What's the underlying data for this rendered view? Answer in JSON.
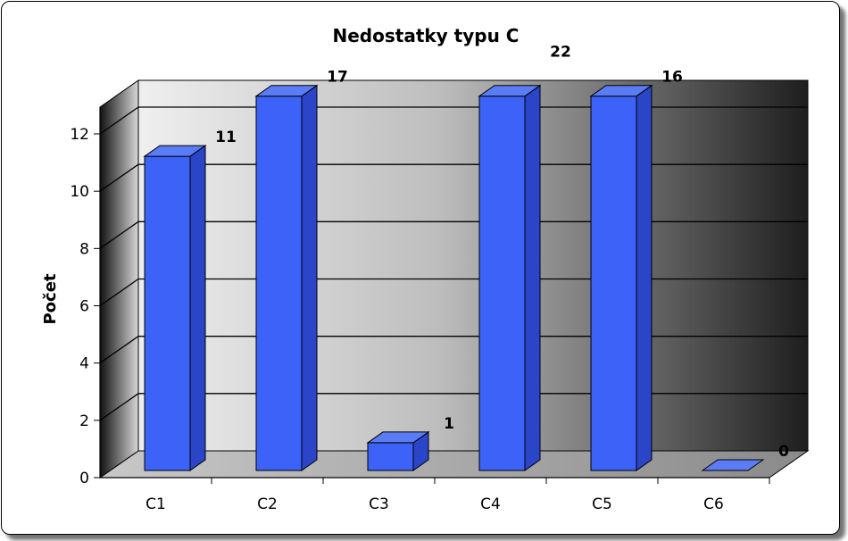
{
  "chart_data": {
    "type": "bar",
    "title": "Nedostatky typu C",
    "xlabel": "",
    "ylabel": "Počet",
    "categories": [
      "C1",
      "C2",
      "C3",
      "C4",
      "C5",
      "C6"
    ],
    "values": [
      11,
      17,
      1,
      22,
      16,
      0
    ],
    "data_labels": [
      "11",
      "17",
      "1",
      "22",
      "16",
      "0"
    ],
    "ylim": [
      0,
      12
    ],
    "yticks": [
      0,
      2,
      4,
      6,
      8,
      10,
      12
    ],
    "grid": true,
    "legend": "none",
    "bar_color": "#3c62f8",
    "bar_top_color": "#5a7cf5",
    "bar_side_color": "#2a45c8"
  }
}
